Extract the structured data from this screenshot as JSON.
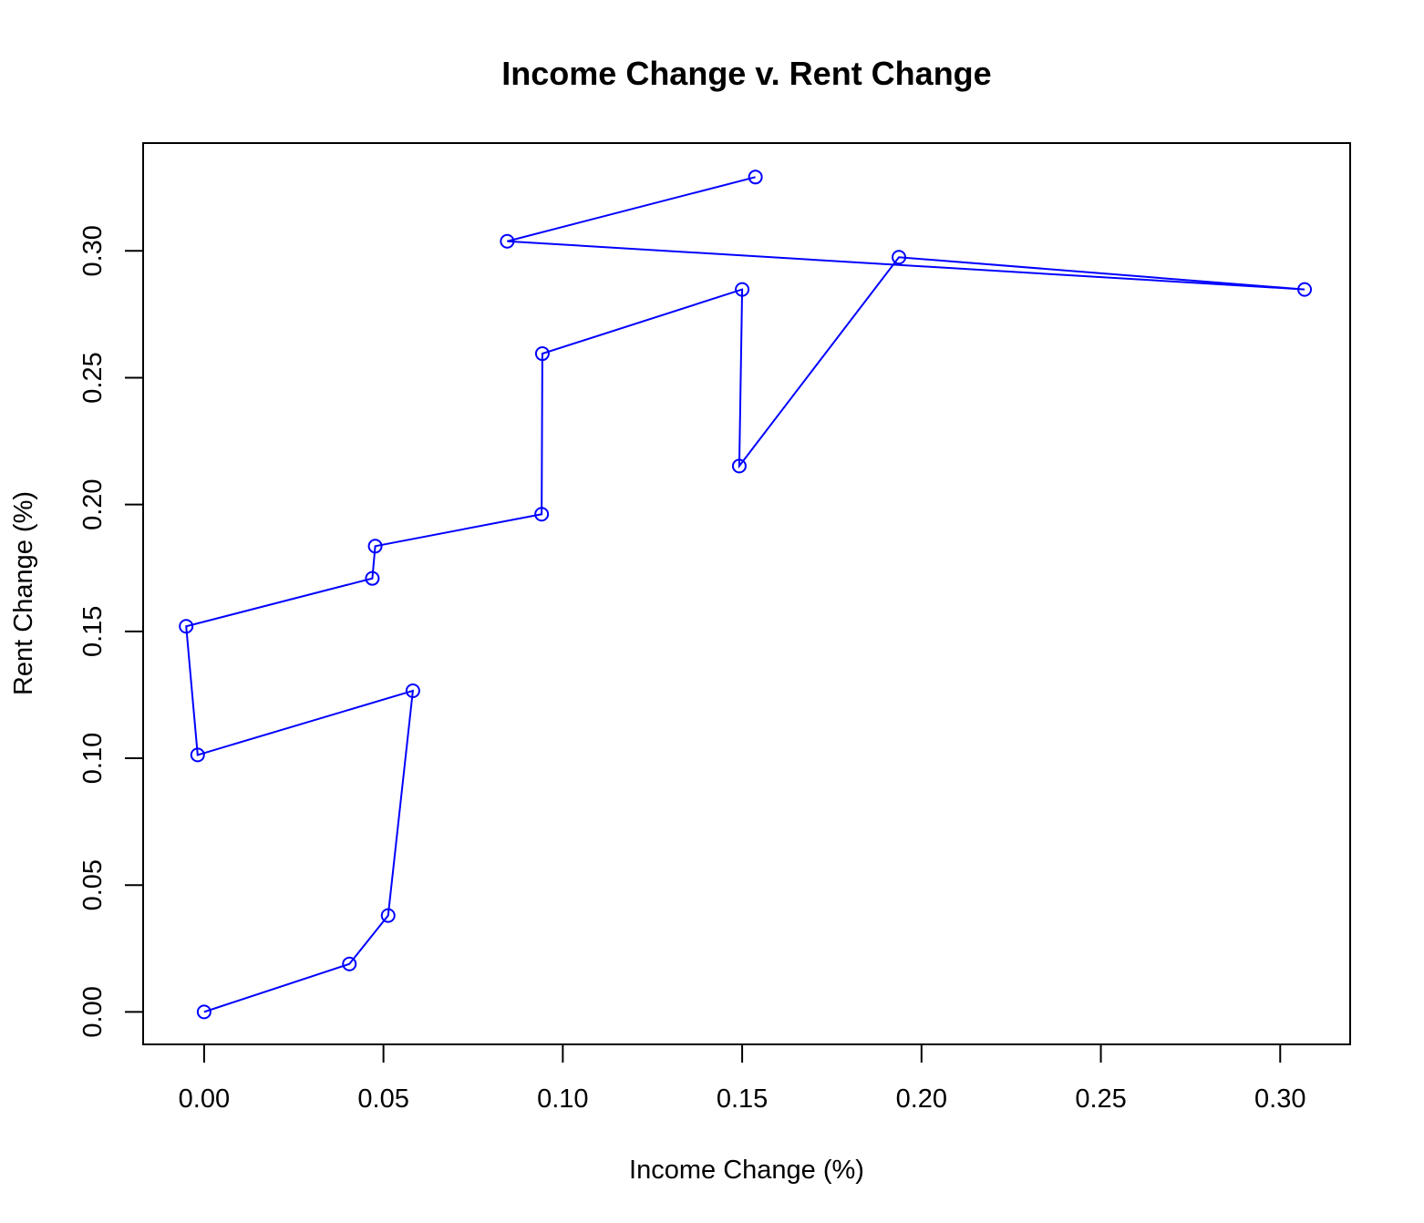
{
  "chart_data": {
    "type": "line",
    "title": "Income Change v. Rent Change",
    "xlabel": "Income Change (%)",
    "ylabel": "Rent Change (%)",
    "xlim": [
      -0.017,
      0.3195
    ],
    "ylim": [
      -0.0128,
      0.3425
    ],
    "x_ticks": [
      0.0,
      0.05,
      0.1,
      0.15,
      0.2,
      0.25,
      0.3
    ],
    "x_tick_labels": [
      "0.00",
      "0.05",
      "0.10",
      "0.15",
      "0.20",
      "0.25",
      "0.30"
    ],
    "y_ticks": [
      0.0,
      0.05,
      0.1,
      0.15,
      0.2,
      0.25,
      0.3
    ],
    "y_tick_labels": [
      "0.00",
      "0.05",
      "0.10",
      "0.15",
      "0.20",
      "0.25",
      "0.30"
    ],
    "grid": false,
    "legend": "none",
    "marker": "open-circle",
    "series": [
      {
        "color": "#0000ff",
        "x": [
          0.0,
          0.0405,
          0.0513,
          0.0582,
          -0.0018,
          -0.005,
          0.0469,
          0.0477,
          0.0941,
          0.0943,
          0.15,
          0.1492,
          0.1937,
          0.3068,
          0.0845,
          0.1537
        ],
        "y": [
          0.0,
          0.0189,
          0.038,
          0.1266,
          0.1013,
          0.152,
          0.1709,
          0.1836,
          0.1962,
          0.2595,
          0.2848,
          0.2152,
          0.2975,
          0.2848,
          0.3038,
          0.3291
        ]
      }
    ]
  }
}
